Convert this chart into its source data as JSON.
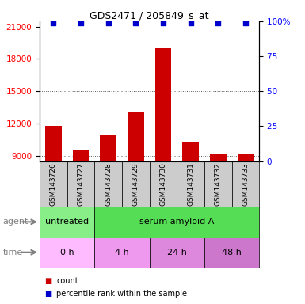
{
  "title": "GDS2471 / 205849_s_at",
  "samples": [
    "GSM143726",
    "GSM143727",
    "GSM143728",
    "GSM143729",
    "GSM143730",
    "GSM143731",
    "GSM143732",
    "GSM143733"
  ],
  "counts": [
    11800,
    9500,
    11000,
    13000,
    19000,
    10200,
    9200,
    9100
  ],
  "percentile_ranks": [
    99,
    99,
    99,
    99,
    99,
    99,
    99,
    99
  ],
  "ylim_left": [
    8500,
    21500
  ],
  "ylim_right": [
    0,
    100
  ],
  "yticks_left": [
    9000,
    12000,
    15000,
    18000,
    21000
  ],
  "yticks_right": [
    0,
    25,
    50,
    75,
    100
  ],
  "bar_color": "#cc0000",
  "dot_color": "#0000cc",
  "agent_row": {
    "label": "agent",
    "groups": [
      {
        "text": "untreated",
        "span": [
          0,
          2
        ],
        "color": "#88ee88"
      },
      {
        "text": "serum amyloid A",
        "span": [
          2,
          8
        ],
        "color": "#55dd55"
      }
    ]
  },
  "time_row": {
    "label": "time",
    "groups": [
      {
        "text": "0 h",
        "span": [
          0,
          2
        ],
        "color": "#ffbbff"
      },
      {
        "text": "4 h",
        "span": [
          2,
          4
        ],
        "color": "#ee99ee"
      },
      {
        "text": "24 h",
        "span": [
          4,
          6
        ],
        "color": "#dd88dd"
      },
      {
        "text": "48 h",
        "span": [
          6,
          8
        ],
        "color": "#cc77cc"
      }
    ]
  },
  "legend_items": [
    {
      "color": "#cc0000",
      "label": "count"
    },
    {
      "color": "#0000cc",
      "label": "percentile rank within the sample"
    }
  ],
  "background_color": "#ffffff",
  "grid_color": "#555555",
  "sample_bg_color": "#cccccc"
}
